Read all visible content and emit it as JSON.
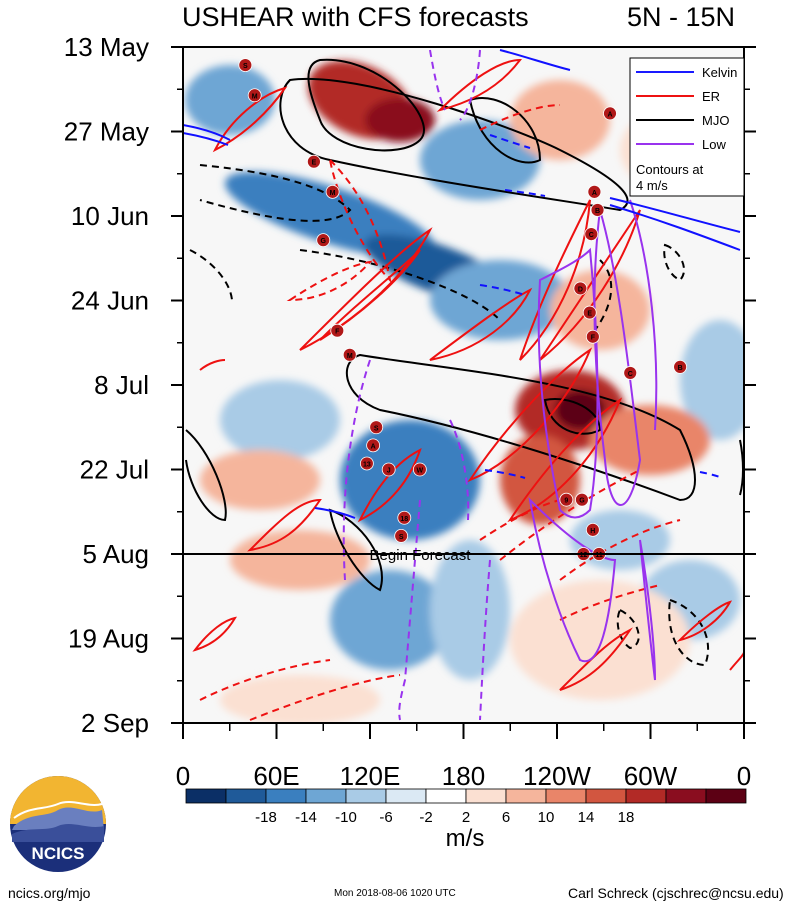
{
  "header": {
    "title": "USHEAR with CFS forecasts",
    "region": "5N - 15N"
  },
  "colors": {
    "kelvin": "#1a1aff",
    "er": "#ee1111",
    "mjo": "#000000",
    "low": "#9933ee",
    "storm_marker": "#b01818"
  },
  "chart_data": {
    "type": "heatmap",
    "title": "USHEAR with CFS forecasts",
    "subtitle": "5N - 15N",
    "x_ticks": [
      "0",
      "60E",
      "120E",
      "180",
      "120W",
      "60W",
      "0"
    ],
    "x_tick_values": [
      0,
      60,
      120,
      180,
      240,
      300,
      360
    ],
    "y_ticks": [
      "13 May",
      "27 May",
      "10 Jun",
      "24 Jun",
      "8 Jul",
      "22 Jul",
      "5 Aug",
      "19 Aug",
      "2 Sep"
    ],
    "y_tick_values": [
      "2018-05-13",
      "2018-05-27",
      "2018-06-10",
      "2018-06-24",
      "2018-07-08",
      "2018-07-22",
      "2018-08-05",
      "2018-08-19",
      "2018-09-02"
    ],
    "x_range": [
      0,
      360
    ],
    "y_range": [
      "2018-05-13",
      "2018-09-02"
    ],
    "forecast_start": "2018-08-05",
    "annotation": "Begin Forecast",
    "legend": {
      "placement": "top-right",
      "entries": [
        {
          "name": "Kelvin",
          "color": "#1a1aff"
        },
        {
          "name": "ER",
          "color": "#ee1111"
        },
        {
          "name": "MJO",
          "color": "#000000"
        },
        {
          "name": "Low",
          "color": "#9933ee"
        }
      ],
      "note": "Contours at 4 m/s"
    },
    "colorbar": {
      "unit": "m/s",
      "labels": [
        "-18",
        "-14",
        "-10",
        "-6",
        "-2",
        "2",
        "6",
        "10",
        "14",
        "18"
      ],
      "colors": [
        "#0b2f66",
        "#1f5a99",
        "#3a7fbf",
        "#6ea6d4",
        "#a9cbe6",
        "#dbe9f4",
        "#ffffff",
        "#fbe0d2",
        "#f5b59c",
        "#e98569",
        "#d25640",
        "#b22a26",
        "#8a0d1f",
        "#5c0014"
      ]
    },
    "storms": [
      {
        "lon": 40,
        "date": "2018-05-16",
        "label": "S"
      },
      {
        "lon": 46,
        "date": "2018-05-21",
        "label": "M"
      },
      {
        "lon": 84,
        "date": "2018-06-01",
        "label": "E"
      },
      {
        "lon": 96,
        "date": "2018-06-06",
        "label": "M"
      },
      {
        "lon": 90,
        "date": "2018-06-14",
        "label": "G"
      },
      {
        "lon": 99,
        "date": "2018-06-29",
        "label": "F"
      },
      {
        "lon": 107,
        "date": "2018-07-03",
        "label": "M"
      },
      {
        "lon": 124,
        "date": "2018-07-15",
        "label": "S"
      },
      {
        "lon": 122,
        "date": "2018-07-18",
        "label": "A"
      },
      {
        "lon": 118,
        "date": "2018-07-21",
        "label": "13"
      },
      {
        "lon": 132,
        "date": "2018-07-22",
        "label": "J"
      },
      {
        "lon": 152,
        "date": "2018-07-22",
        "label": "W"
      },
      {
        "lon": 142,
        "date": "2018-07-30",
        "label": "18"
      },
      {
        "lon": 140,
        "date": "2018-08-02",
        "label": "S"
      },
      {
        "lon": 246,
        "date": "2018-07-27",
        "label": "9"
      },
      {
        "lon": 256,
        "date": "2018-07-27",
        "label": "G"
      },
      {
        "lon": 263,
        "date": "2018-08-01",
        "label": "H"
      },
      {
        "lon": 257,
        "date": "2018-08-05",
        "label": "12"
      },
      {
        "lon": 267,
        "date": "2018-08-05",
        "label": "11"
      },
      {
        "lon": 255,
        "date": "2018-06-22",
        "label": "D"
      },
      {
        "lon": 261,
        "date": "2018-06-26",
        "label": "E"
      },
      {
        "lon": 263,
        "date": "2018-06-30",
        "label": "F"
      },
      {
        "lon": 264,
        "date": "2018-06-06",
        "label": "A"
      },
      {
        "lon": 266,
        "date": "2018-06-09",
        "label": "B"
      },
      {
        "lon": 262,
        "date": "2018-06-13",
        "label": "C"
      },
      {
        "lon": 274,
        "date": "2018-05-24",
        "label": "A"
      },
      {
        "lon": 287,
        "date": "2018-07-06",
        "label": "C"
      },
      {
        "lon": 319,
        "date": "2018-07-05",
        "label": "B"
      }
    ]
  },
  "footer": {
    "logo_text": "NCICS",
    "website": "ncics.org/mjo",
    "timestamp": "Mon 2018-08-06 1020 UTC",
    "author": "Carl Schreck (cjschrec@ncsu.edu)"
  }
}
